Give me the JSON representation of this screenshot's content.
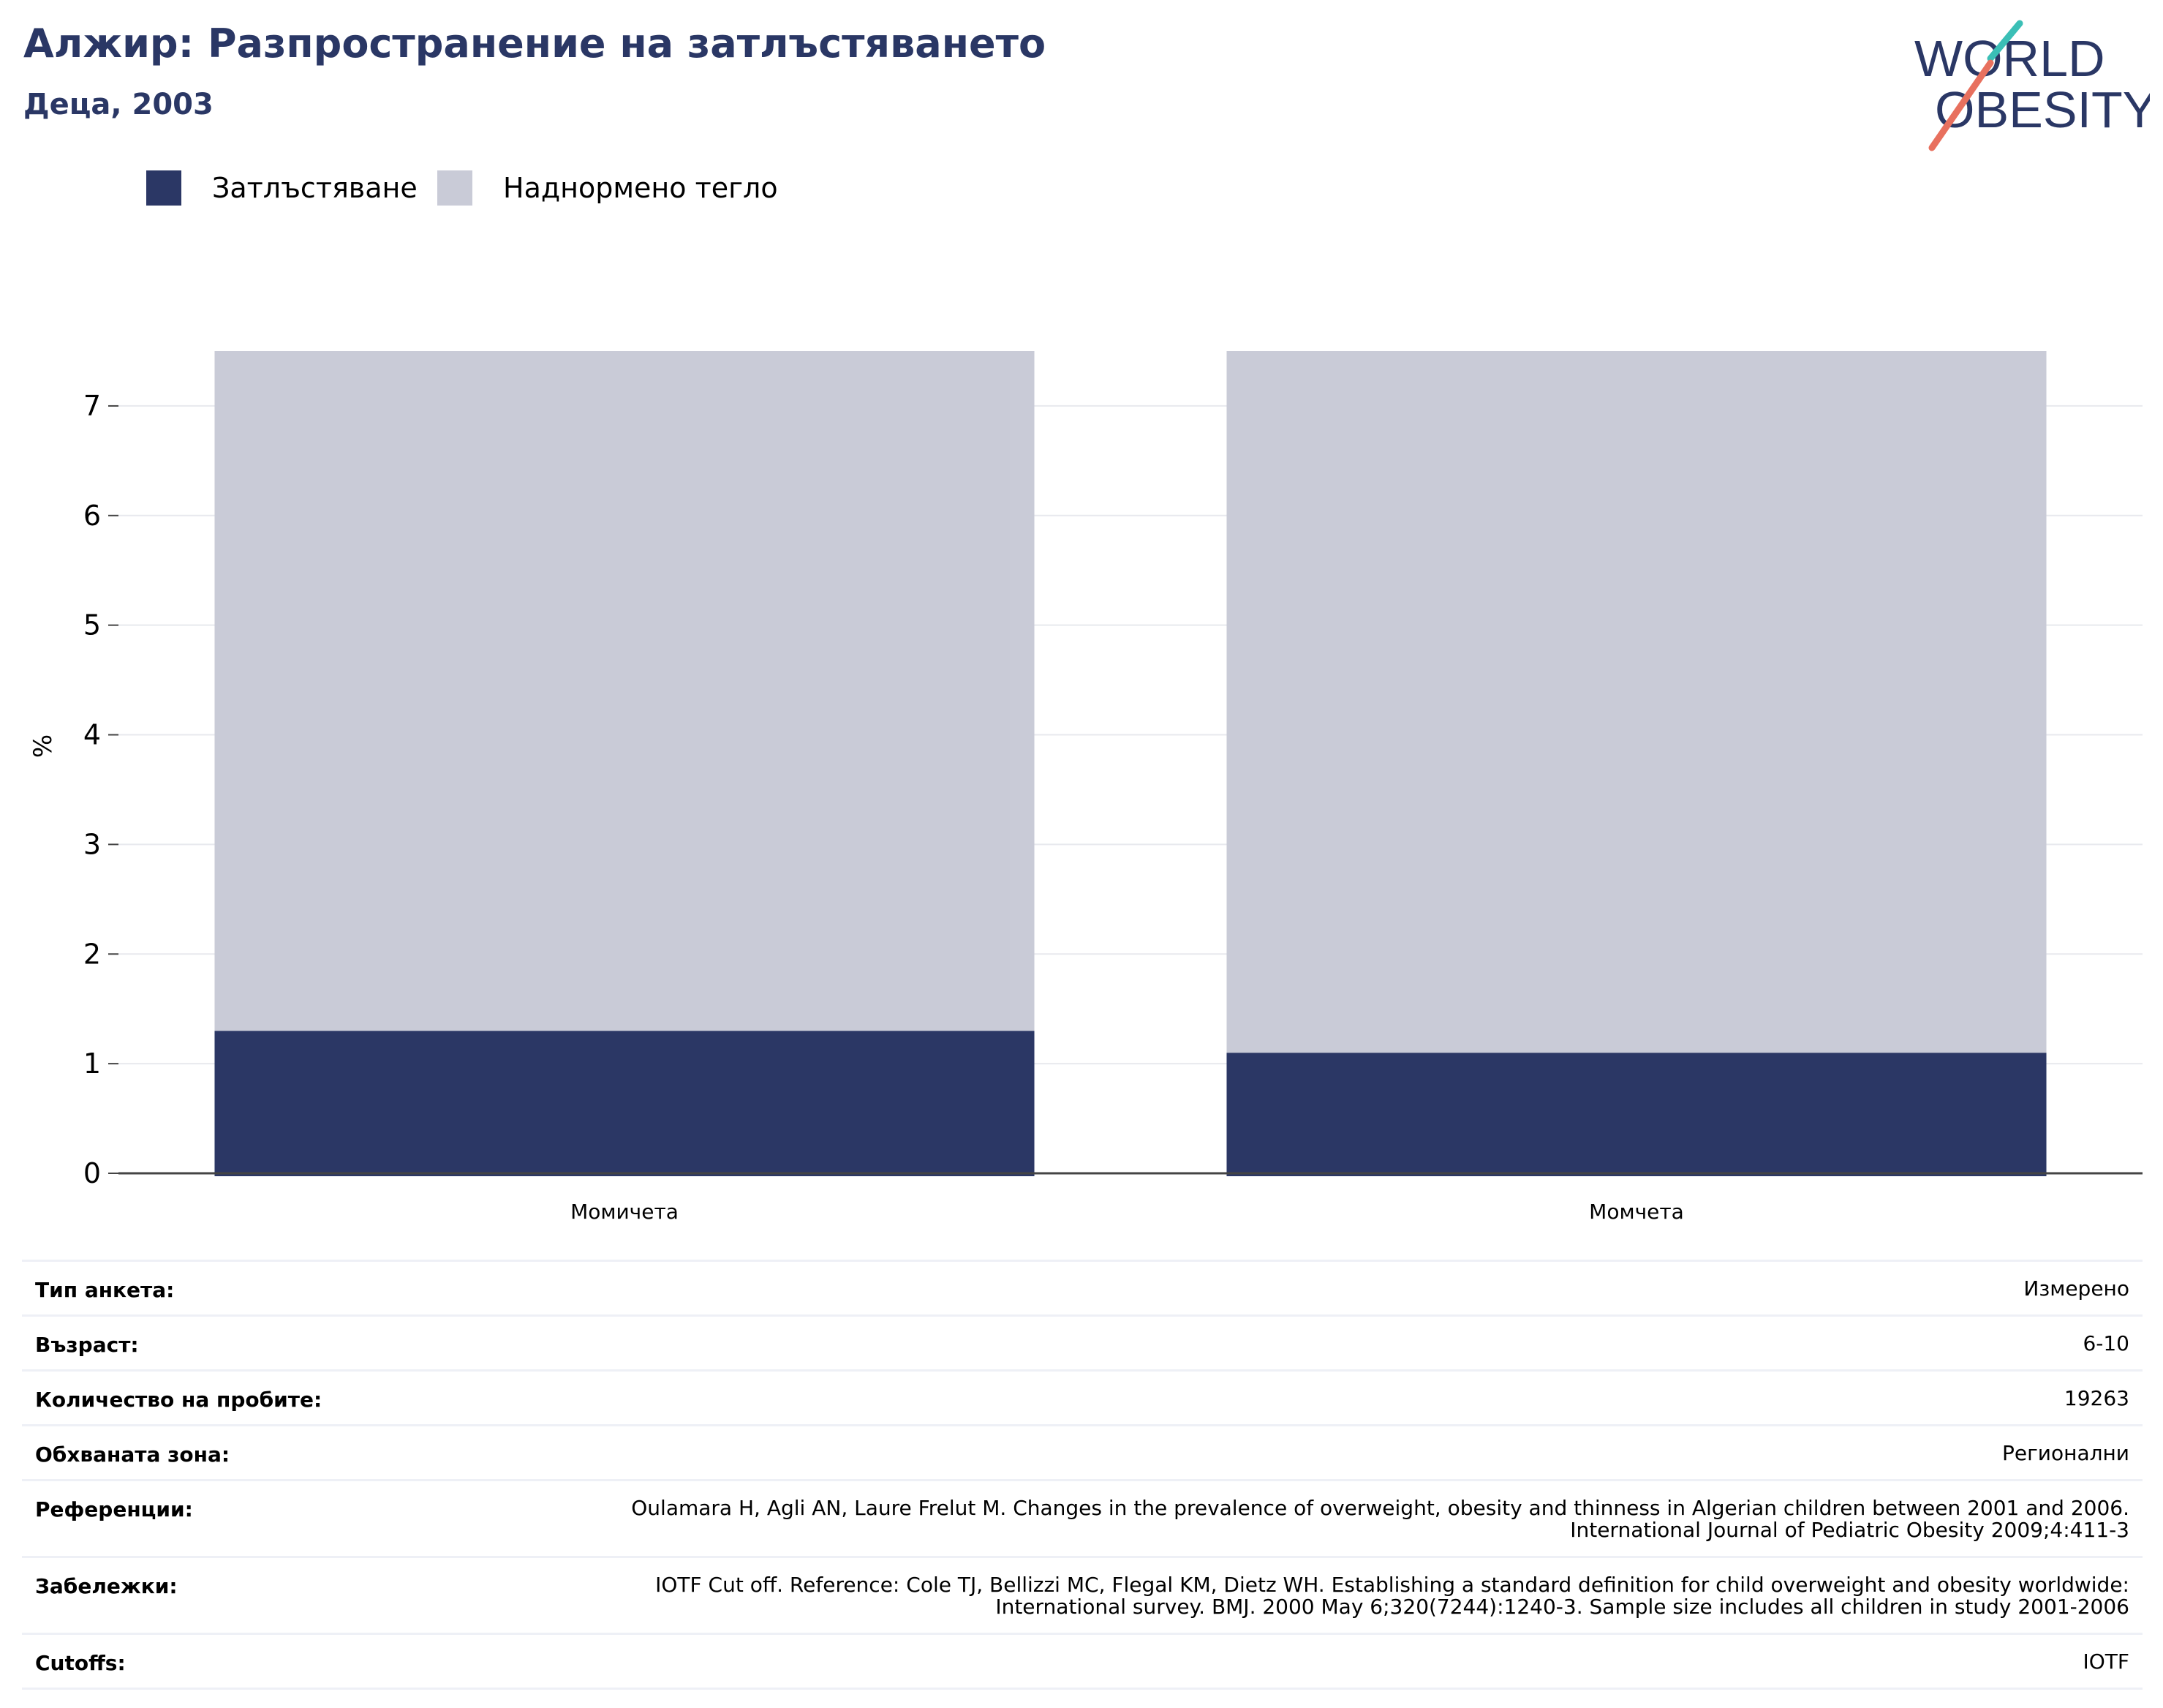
{
  "header": {
    "title": "Алжир: Разпространение на затлъстяването",
    "subtitle": "Деца, 2003"
  },
  "logo": {
    "line1": "WORLD",
    "line2": "OBESITY",
    "colors": {
      "text": "#2a3765",
      "slash_top": "#3bbfb6",
      "slash_bottom": "#e8705e"
    }
  },
  "legend": [
    {
      "label": "Затлъстяване",
      "color": "#2b3765"
    },
    {
      "label": "Наднормено тегло",
      "color": "#c9cbd7"
    }
  ],
  "chart_data": {
    "type": "bar",
    "stacked": true,
    "categories": [
      "Момичета",
      "Момчета"
    ],
    "series": [
      {
        "name": "Затлъстяване",
        "values": [
          1.3,
          1.1
        ],
        "color": "#2b3765"
      },
      {
        "name": "Наднормено тегло",
        "values": [
          6.2,
          6.4
        ],
        "color": "#c9cbd7"
      }
    ],
    "title": "Алжир: Разпространение на затлъстяването",
    "subtitle": "Деца, 2003",
    "xlabel": "",
    "ylabel": "%",
    "ylim": [
      0,
      7.5
    ],
    "yticks": [
      0,
      1,
      2,
      3,
      4,
      5,
      6,
      7
    ],
    "grid": true,
    "legend_position": "top-left"
  },
  "meta": [
    {
      "label": "Тип анкета:",
      "value": "Измерено"
    },
    {
      "label": "Възраст:",
      "value": "6-10"
    },
    {
      "label": "Количество на пробите:",
      "value": "19263"
    },
    {
      "label": "Обхваната зона:",
      "value": "Регионални"
    },
    {
      "label": "Референции:",
      "value": "Oulamara H, Agli AN, Laure Frelut M. Changes in the prevalence of overweight, obesity and thinness in Algerian children between 2001 and 2006. International Journal of Pediatric Obesity 2009;4:411-3"
    },
    {
      "label": "Забележки:",
      "value": "IOTF Cut off. Reference: Cole TJ, Bellizzi MC, Flegal KM, Dietz WH. Establishing a standard definition for child overweight and obesity worldwide: International survey. BMJ. 2000 May 6;320(7244):1240-3. Sample size includes all children in study 2001-2006"
    },
    {
      "label": "Cutoffs:",
      "value": "IOTF"
    }
  ]
}
